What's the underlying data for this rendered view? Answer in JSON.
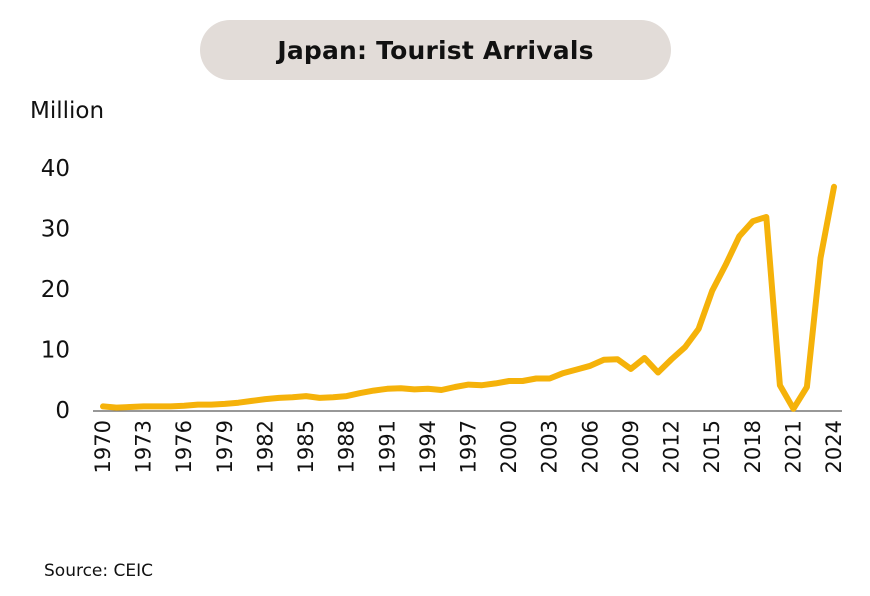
{
  "title": "Japan: Tourist Arrivals",
  "unit_label": "Million",
  "source": "Source: CEIC",
  "chart_data": {
    "type": "line",
    "title": "Japan: Tourist Arrivals",
    "ylabel": "Million",
    "xlabel": "",
    "ylim": [
      0,
      40
    ],
    "xlim": [
      1970,
      2024
    ],
    "yticks": [
      0,
      10,
      20,
      30,
      40
    ],
    "xticks": [
      1970,
      1973,
      1976,
      1979,
      1982,
      1985,
      1988,
      1991,
      1994,
      1997,
      2000,
      2003,
      2006,
      2009,
      2012,
      2015,
      2018,
      2021,
      2024
    ],
    "grid": false,
    "legend": "none",
    "line_color": "#f5b20a",
    "series": [
      {
        "x": [
          1970,
          1971,
          1972,
          1973,
          1974,
          1975,
          1976,
          1977,
          1978,
          1979,
          1980,
          1981,
          1982,
          1983,
          1984,
          1985,
          1986,
          1987,
          1988,
          1989,
          1990,
          1991,
          1992,
          1993,
          1994,
          1995,
          1996,
          1997,
          1998,
          1999,
          2000,
          2001,
          2002,
          2003,
          2004,
          2005,
          2006,
          2007,
          2008,
          2009,
          2010,
          2011,
          2012,
          2013,
          2014,
          2015,
          2016,
          2017,
          2018,
          2019,
          2020,
          2021,
          2022,
          2023,
          2024
        ],
        "values": [
          0.6,
          0.4,
          0.5,
          0.6,
          0.6,
          0.6,
          0.7,
          0.9,
          0.9,
          1.0,
          1.2,
          1.5,
          1.8,
          2.0,
          2.1,
          2.3,
          2.0,
          2.1,
          2.3,
          2.8,
          3.2,
          3.5,
          3.6,
          3.4,
          3.5,
          3.3,
          3.8,
          4.2,
          4.1,
          4.4,
          4.8,
          4.8,
          5.2,
          5.2,
          6.1,
          6.7,
          7.3,
          8.3,
          8.4,
          6.8,
          8.6,
          6.2,
          8.4,
          10.4,
          13.4,
          19.7,
          24.0,
          28.7,
          31.2,
          31.9,
          4.1,
          0.2,
          3.8,
          25.1,
          36.9
        ]
      }
    ]
  }
}
